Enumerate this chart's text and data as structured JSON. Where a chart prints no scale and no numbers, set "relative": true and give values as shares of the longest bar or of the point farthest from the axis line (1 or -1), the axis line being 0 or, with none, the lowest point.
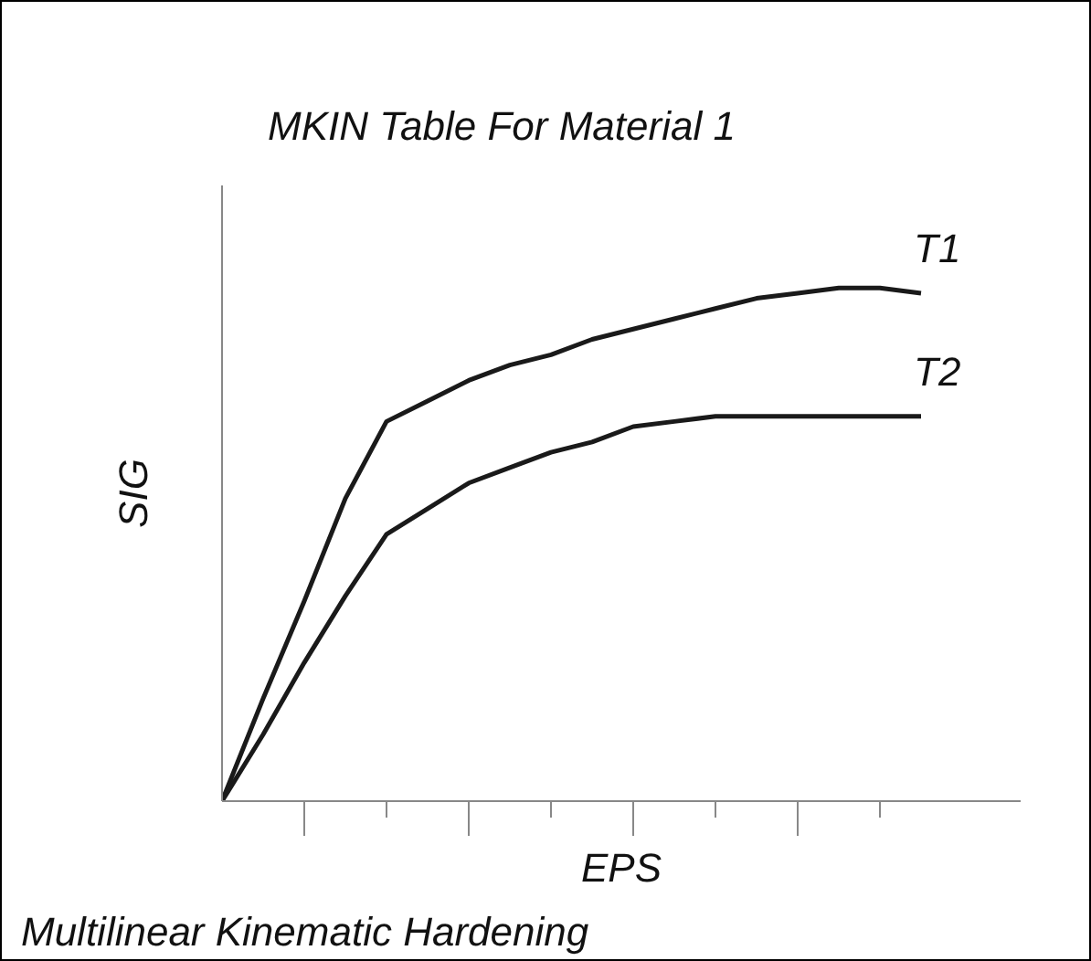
{
  "chart_data": {
    "type": "line",
    "title": "MKIN Table For Material 1",
    "xlabel": "EPS",
    "ylabel": "SIG",
    "annotations": [
      "Multilinear Kinematic Hardening"
    ],
    "relative": true,
    "grid": false,
    "categories": [
      null,
      null,
      null,
      null,
      null,
      null,
      null,
      null,
      null,
      null,
      null,
      null,
      null,
      null,
      null,
      null,
      null,
      null
    ],
    "series": [
      {
        "name": "T1",
        "color": "#1a1a1a",
        "values": [
          0,
          0.2,
          0.39,
          0.59,
          0.74,
          0.78,
          0.82,
          0.85,
          0.87,
          0.9,
          0.92,
          0.94,
          0.96,
          0.98,
          0.99,
          1.0,
          1.0,
          0.99
        ]
      },
      {
        "name": "T2",
        "color": "#1a1a1a",
        "values": [
          0,
          0.13,
          0.27,
          0.4,
          0.52,
          0.57,
          0.62,
          0.65,
          0.68,
          0.7,
          0.73,
          0.74,
          0.75,
          0.75,
          0.75,
          0.75,
          0.75,
          0.75
        ]
      }
    ]
  }
}
